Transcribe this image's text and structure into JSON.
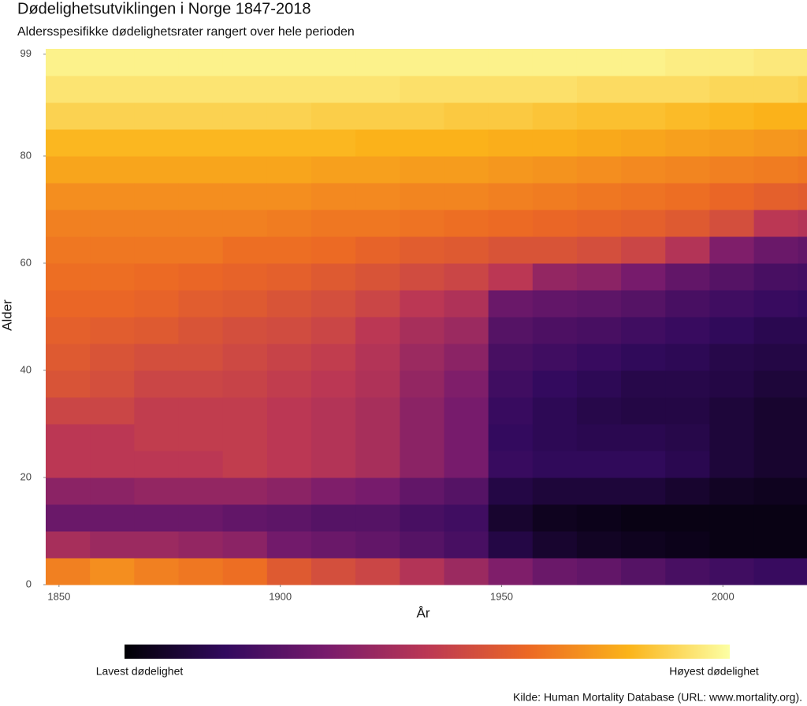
{
  "chart_data": {
    "type": "heatmap",
    "title": "Dødelighetsutviklingen i Norge 1847-2018",
    "subtitle": "Aldersspesifikke dødelighetsrater rangert over hele perioden",
    "x_label": "År",
    "y_label": "Alder",
    "caption": "Kilde: Human Mortality Database (URL: www.mortality.org).",
    "legend_low": "Lavest dødelighet",
    "legend_high": "Høyest dødelighet",
    "colorscale": [
      "#000004",
      "#320a5e",
      "#781b6c",
      "#bb3754",
      "#ec6824",
      "#fbb41a",
      "#fcffa4"
    ],
    "zlim": [
      0,
      1
    ],
    "x": [
      1847,
      1857,
      1867,
      1877,
      1887,
      1897,
      1907,
      1917,
      1927,
      1937,
      1947,
      1957,
      1967,
      1977,
      1987,
      1997,
      2007,
      2017
    ],
    "y": [
      0,
      5,
      10,
      15,
      20,
      25,
      30,
      35,
      40,
      45,
      50,
      55,
      60,
      65,
      70,
      75,
      80,
      85,
      90,
      95
    ],
    "xlim": [
      1847,
      2019
    ],
    "ylim": [
      0,
      100
    ],
    "xticks": [
      1850,
      1900,
      1950,
      2000
    ],
    "yticks": [
      0,
      20,
      40,
      60,
      80,
      99
    ],
    "values": [
      [
        0.72,
        0.75,
        0.72,
        0.7,
        0.68,
        0.62,
        0.58,
        0.55,
        0.48,
        0.42,
        0.35,
        0.3,
        0.28,
        0.25,
        0.22,
        0.2,
        0.18,
        0.18
      ],
      [
        0.45,
        0.42,
        0.42,
        0.4,
        0.38,
        0.32,
        0.3,
        0.28,
        0.25,
        0.22,
        0.12,
        0.08,
        0.06,
        0.05,
        0.04,
        0.03,
        0.03,
        0.03
      ],
      [
        0.3,
        0.3,
        0.3,
        0.3,
        0.28,
        0.27,
        0.25,
        0.25,
        0.22,
        0.2,
        0.08,
        0.05,
        0.04,
        0.03,
        0.03,
        0.03,
        0.03,
        0.03
      ],
      [
        0.38,
        0.38,
        0.4,
        0.4,
        0.4,
        0.38,
        0.35,
        0.33,
        0.28,
        0.25,
        0.12,
        0.1,
        0.1,
        0.1,
        0.08,
        0.06,
        0.05,
        0.05
      ],
      [
        0.5,
        0.5,
        0.5,
        0.5,
        0.52,
        0.5,
        0.48,
        0.45,
        0.38,
        0.33,
        0.18,
        0.16,
        0.16,
        0.16,
        0.14,
        0.1,
        0.08,
        0.08
      ],
      [
        0.5,
        0.5,
        0.52,
        0.52,
        0.52,
        0.5,
        0.48,
        0.45,
        0.38,
        0.33,
        0.17,
        0.15,
        0.14,
        0.14,
        0.13,
        0.1,
        0.08,
        0.08
      ],
      [
        0.55,
        0.55,
        0.52,
        0.52,
        0.52,
        0.5,
        0.48,
        0.45,
        0.38,
        0.33,
        0.18,
        0.15,
        0.13,
        0.12,
        0.12,
        0.1,
        0.08,
        0.08
      ],
      [
        0.6,
        0.58,
        0.55,
        0.55,
        0.54,
        0.52,
        0.5,
        0.47,
        0.4,
        0.35,
        0.2,
        0.17,
        0.15,
        0.13,
        0.13,
        0.12,
        0.1,
        0.1
      ],
      [
        0.62,
        0.6,
        0.58,
        0.58,
        0.56,
        0.54,
        0.52,
        0.48,
        0.42,
        0.38,
        0.22,
        0.2,
        0.18,
        0.16,
        0.15,
        0.13,
        0.12,
        0.12
      ],
      [
        0.64,
        0.63,
        0.62,
        0.6,
        0.58,
        0.57,
        0.55,
        0.5,
        0.45,
        0.42,
        0.25,
        0.23,
        0.22,
        0.2,
        0.18,
        0.16,
        0.14,
        0.14
      ],
      [
        0.66,
        0.66,
        0.65,
        0.63,
        0.62,
        0.6,
        0.58,
        0.55,
        0.5,
        0.47,
        0.3,
        0.28,
        0.27,
        0.25,
        0.22,
        0.2,
        0.18,
        0.17
      ],
      [
        0.68,
        0.68,
        0.67,
        0.66,
        0.65,
        0.64,
        0.62,
        0.6,
        0.57,
        0.55,
        0.5,
        0.4,
        0.38,
        0.33,
        0.28,
        0.25,
        0.22,
        0.21
      ],
      [
        0.7,
        0.7,
        0.7,
        0.7,
        0.68,
        0.68,
        0.67,
        0.65,
        0.63,
        0.62,
        0.6,
        0.6,
        0.58,
        0.55,
        0.48,
        0.35,
        0.3,
        0.28
      ],
      [
        0.72,
        0.72,
        0.72,
        0.72,
        0.72,
        0.71,
        0.7,
        0.7,
        0.69,
        0.68,
        0.67,
        0.66,
        0.65,
        0.64,
        0.62,
        0.58,
        0.5,
        0.48
      ],
      [
        0.75,
        0.75,
        0.75,
        0.75,
        0.75,
        0.75,
        0.74,
        0.74,
        0.73,
        0.73,
        0.72,
        0.71,
        0.7,
        0.69,
        0.68,
        0.66,
        0.64,
        0.63
      ],
      [
        0.8,
        0.8,
        0.8,
        0.8,
        0.8,
        0.8,
        0.79,
        0.79,
        0.78,
        0.78,
        0.77,
        0.76,
        0.75,
        0.74,
        0.73,
        0.72,
        0.71,
        0.7
      ],
      [
        0.84,
        0.84,
        0.84,
        0.84,
        0.84,
        0.84,
        0.84,
        0.83,
        0.83,
        0.83,
        0.82,
        0.82,
        0.81,
        0.8,
        0.79,
        0.78,
        0.77,
        0.76
      ],
      [
        0.9,
        0.9,
        0.9,
        0.9,
        0.9,
        0.9,
        0.89,
        0.89,
        0.89,
        0.88,
        0.88,
        0.87,
        0.86,
        0.86,
        0.85,
        0.84,
        0.83,
        0.83
      ],
      [
        0.94,
        0.94,
        0.94,
        0.94,
        0.94,
        0.94,
        0.94,
        0.94,
        0.93,
        0.93,
        0.93,
        0.93,
        0.92,
        0.92,
        0.92,
        0.91,
        0.91,
        0.9
      ],
      [
        0.97,
        0.97,
        0.97,
        0.97,
        0.97,
        0.97,
        0.97,
        0.97,
        0.97,
        0.97,
        0.97,
        0.97,
        0.97,
        0.97,
        0.96,
        0.96,
        0.95,
        0.95
      ]
    ]
  }
}
